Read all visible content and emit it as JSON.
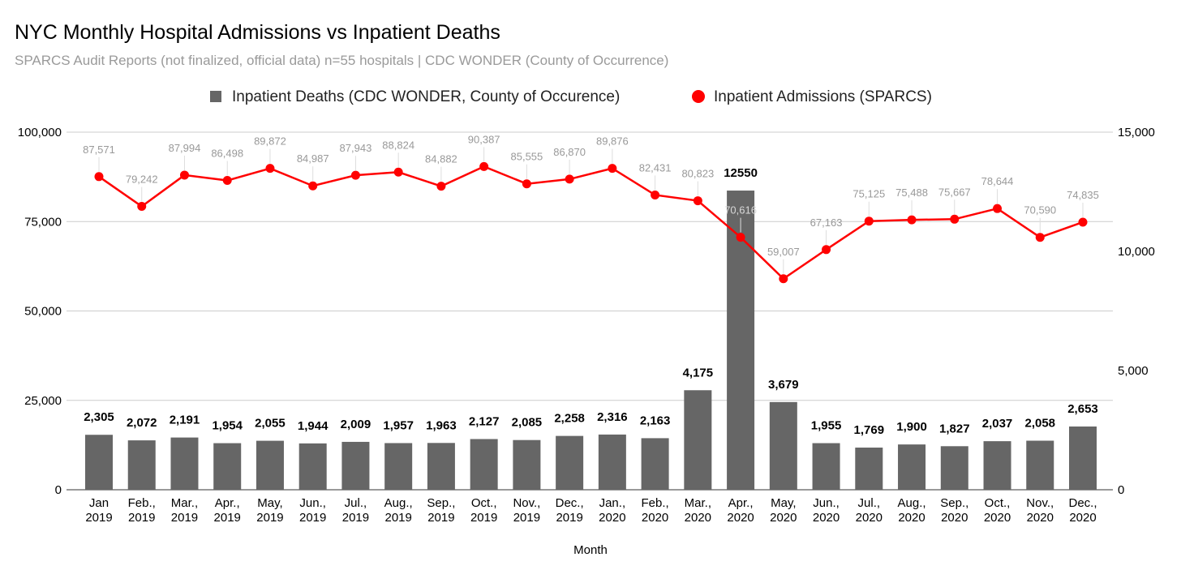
{
  "chart_data": {
    "type": "bar+line",
    "title": "NYC Monthly Hospital Admissions vs Inpatient Deaths",
    "subtitle": "SPARCS Audit Reports (not finalized, official data) n=55 hospitals | CDC WONDER (County of Occurrence)",
    "xlabel": "Month",
    "legend_position": "top-center",
    "categories": [
      [
        "Jan",
        "2019"
      ],
      [
        "Feb.,",
        "2019"
      ],
      [
        "Mar.,",
        "2019"
      ],
      [
        "Apr.,",
        "2019"
      ],
      [
        "May,",
        "2019"
      ],
      [
        "Jun.,",
        "2019"
      ],
      [
        "Jul.,",
        "2019"
      ],
      [
        "Aug.,",
        "2019"
      ],
      [
        "Sep.,",
        "2019"
      ],
      [
        "Oct.,",
        "2019"
      ],
      [
        "Nov.,",
        "2019"
      ],
      [
        "Dec.,",
        "2019"
      ],
      [
        "Jan.,",
        "2020"
      ],
      [
        "Feb.,",
        "2020"
      ],
      [
        "Mar.,",
        "2020"
      ],
      [
        "Apr.,",
        "2020"
      ],
      [
        "May,",
        "2020"
      ],
      [
        "Jun.,",
        "2020"
      ],
      [
        "Jul.,",
        "2020"
      ],
      [
        "Aug.,",
        "2020"
      ],
      [
        "Sep.,",
        "2020"
      ],
      [
        "Oct.,",
        "2020"
      ],
      [
        "Nov.,",
        "2020"
      ],
      [
        "Dec.,",
        "2020"
      ]
    ],
    "left_axis": {
      "ylim": [
        0,
        100000
      ],
      "ticks": [
        "0",
        "25,000",
        "50,000",
        "75,000",
        "100,000"
      ],
      "tick_values": [
        0,
        25000,
        50000,
        75000,
        100000
      ]
    },
    "right_axis": {
      "ylim": [
        0,
        15000
      ],
      "ticks": [
        "0",
        "5,000",
        "10,000",
        "15,000"
      ],
      "tick_values": [
        0,
        5000,
        10000,
        15000
      ]
    },
    "grid": true,
    "series": [
      {
        "name": "Inpatient Deaths (CDC WONDER, County of Occurence)",
        "type": "bar",
        "axis": "right",
        "color": "#666666",
        "values": [
          2305,
          2072,
          2191,
          1954,
          2055,
          1944,
          2009,
          1957,
          1963,
          2127,
          2085,
          2258,
          2316,
          2163,
          4175,
          12550,
          3679,
          1955,
          1769,
          1900,
          1827,
          2037,
          2058,
          2653
        ],
        "labels": [
          "2,305",
          "2,072",
          "2,191",
          "1,954",
          "2,055",
          "1,944",
          "2,009",
          "1,957",
          "1,963",
          "2,127",
          "2,085",
          "2,258",
          "2,316",
          "2,163",
          "4,175",
          "12550",
          "3,679",
          "1,955",
          "1,769",
          "1,900",
          "1,827",
          "2,037",
          "2,058",
          "2,653"
        ]
      },
      {
        "name": "Inpatient Admissions (SPARCS)",
        "type": "line",
        "axis": "left",
        "color": "#ff0000",
        "values": [
          87571,
          79242,
          87994,
          86498,
          89872,
          84987,
          87943,
          88824,
          84882,
          90387,
          85555,
          86870,
          89876,
          82431,
          80823,
          70616,
          59007,
          67163,
          75125,
          75488,
          75667,
          78644,
          70590,
          74835
        ],
        "labels": [
          "87,571",
          "79,242",
          "87,994",
          "86,498",
          "89,872",
          "84,987",
          "87,943",
          "88,824",
          "84,882",
          "90,387",
          "85,555",
          "86,870",
          "89,876",
          "82,431",
          "80,823",
          "70,616",
          "59,007",
          "67,163",
          "75,125",
          "75,488",
          "75,667",
          "78,644",
          "70,590",
          "74,835"
        ]
      }
    ]
  }
}
